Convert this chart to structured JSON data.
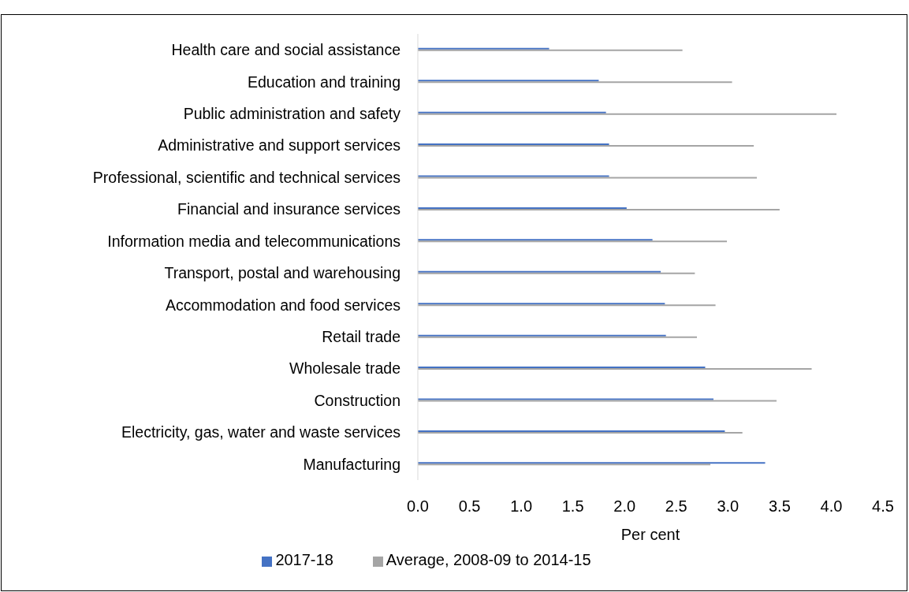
{
  "chart_data": {
    "type": "bar",
    "orientation": "horizontal",
    "xlabel": "Per cent",
    "categories": [
      "Health care and social assistance",
      "Education and training",
      "Public administration and safety",
      "Administrative and support services",
      "Professional, scientific and technical services",
      "Financial and insurance services",
      "Information media and telecommunications",
      "Transport, postal and warehousing",
      "Accommodation and food services",
      "Retail trade",
      "Wholesale trade",
      "Construction",
      "Electricity, gas, water and waste services",
      "Manufacturing"
    ],
    "series": [
      {
        "name": "2017-18",
        "color": "#4472c4",
        "values": [
          1.27,
          1.75,
          1.82,
          1.85,
          1.85,
          2.02,
          2.27,
          2.35,
          2.39,
          2.4,
          2.78,
          2.86,
          2.97,
          3.36
        ]
      },
      {
        "name": "Average, 2008-09 to 2014-15",
        "color": "#a5a5a5",
        "values": [
          2.56,
          3.04,
          4.05,
          3.25,
          3.28,
          3.5,
          2.99,
          2.68,
          2.88,
          2.7,
          3.81,
          3.47,
          3.14,
          2.83
        ]
      }
    ],
    "xlim": [
      0,
      4.5
    ],
    "xticks": [
      {
        "value": 0,
        "label": "0.0"
      },
      {
        "value": 0.5,
        "label": "0.5"
      },
      {
        "value": 1,
        "label": "1.0"
      },
      {
        "value": 1.5,
        "label": "1.5"
      },
      {
        "value": 2,
        "label": "2.0"
      },
      {
        "value": 2.5,
        "label": "2.5"
      },
      {
        "value": 3,
        "label": "3.0"
      },
      {
        "value": 3.5,
        "label": "3.5"
      },
      {
        "value": 4,
        "label": "4.0"
      },
      {
        "value": 4.5,
        "label": "4.5"
      }
    ],
    "grid": false,
    "legend": "bottom"
  }
}
